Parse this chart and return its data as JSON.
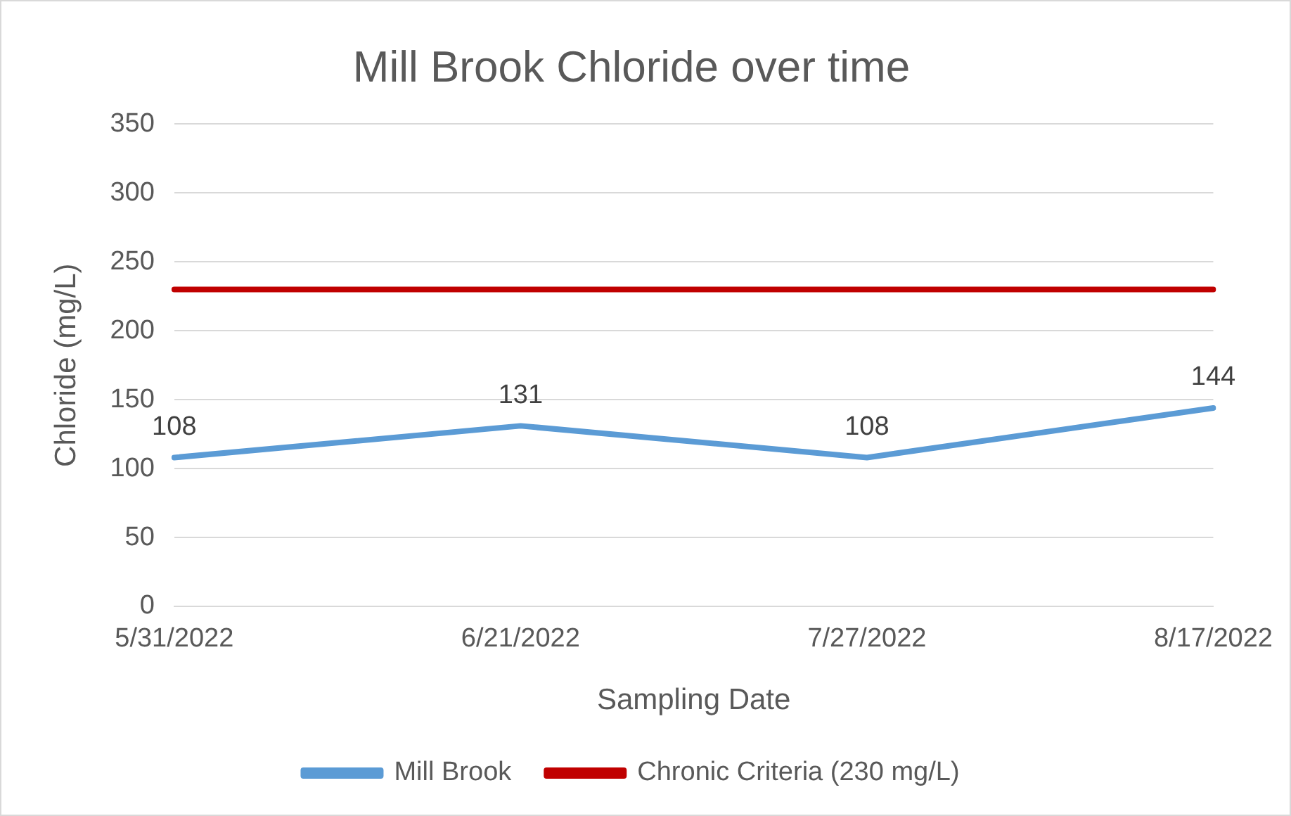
{
  "chart_data": {
    "type": "line",
    "title": "Mill Brook Chloride over time",
    "xlabel": "Sampling Date",
    "ylabel": "Chloride (mg/L)",
    "categories": [
      "5/31/2022",
      "6/21/2022",
      "7/27/2022",
      "8/17/2022"
    ],
    "series": [
      {
        "name": "Mill Brook",
        "color": "#5b9bd5",
        "values": [
          108,
          131,
          108,
          144
        ],
        "value_labels": [
          "108",
          "131",
          "108",
          "144"
        ]
      },
      {
        "name": "Chronic Criteria (230 mg/L)",
        "color": "#c00000",
        "values": [
          230,
          230,
          230,
          230
        ]
      }
    ],
    "ylim": [
      0,
      350
    ],
    "yticks": [
      0,
      50,
      100,
      150,
      200,
      250,
      300,
      350
    ],
    "grid": "y",
    "legend": "bottom",
    "marker": "none",
    "line_style": "solid"
  }
}
